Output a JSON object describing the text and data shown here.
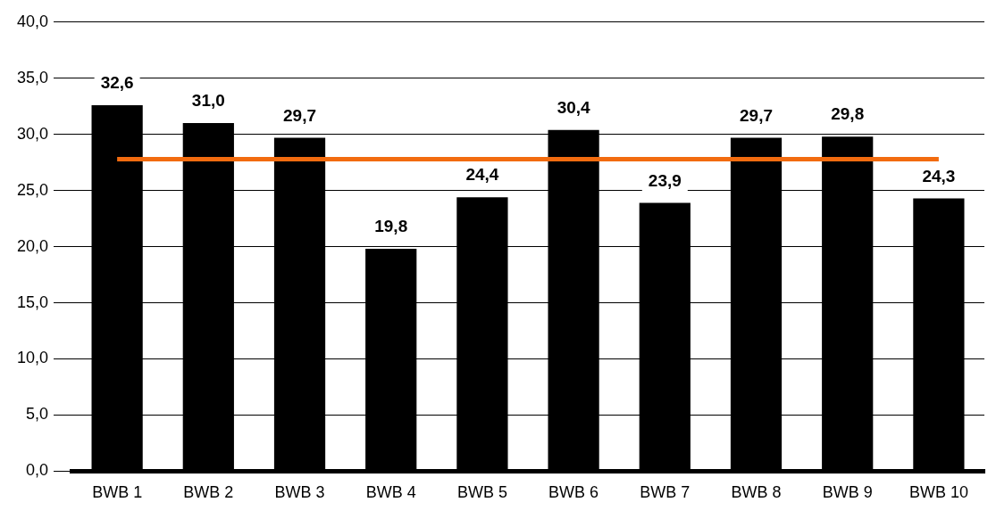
{
  "chart_data": {
    "type": "bar",
    "categories": [
      "BWB 1",
      "BWB 2",
      "BWB 3",
      "BWB 4",
      "BWB 5",
      "BWB 6",
      "BWB 7",
      "BWB 8",
      "BWB 9",
      "BWB 10"
    ],
    "series": [
      {
        "color": "#000000",
        "values": [
          32.6,
          31.0,
          29.7,
          19.8,
          24.4,
          30.4,
          23.9,
          29.7,
          29.8,
          24.3
        ],
        "value_labels": [
          "32,6",
          "31,0",
          "29,7",
          "19,8",
          "24,4",
          "30,4",
          "23,9",
          "29,7",
          "29,8",
          "24,3"
        ]
      },
      {
        "type": "line",
        "color": "#f26b0f",
        "values": [
          27.8,
          27.8,
          27.8,
          27.8,
          27.8,
          27.8,
          27.8,
          27.8,
          27.8,
          27.8
        ],
        "marker": "none"
      }
    ],
    "ylim": [
      0,
      40
    ],
    "yticks": [
      {
        "value": 0,
        "label": "0,0"
      },
      {
        "value": 5,
        "label": "5,0"
      },
      {
        "value": 10,
        "label": "10,0"
      },
      {
        "value": 15,
        "label": "15,0"
      },
      {
        "value": 20,
        "label": "20,0"
      },
      {
        "value": 25,
        "label": "25,0"
      },
      {
        "value": 30,
        "label": "30,0"
      },
      {
        "value": 35,
        "label": "35,0"
      },
      {
        "value": 40,
        "label": "40,0"
      }
    ],
    "grid": "y",
    "legend": false
  }
}
